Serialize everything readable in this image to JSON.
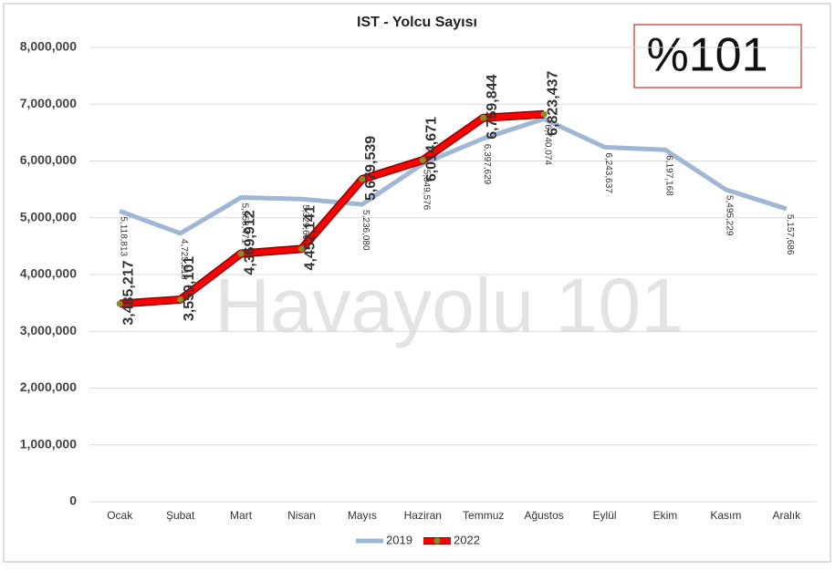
{
  "chart_data": {
    "type": "line",
    "title": "IST - Yolcu Sayısı",
    "annotations": [
      "%101",
      "Havayolu 101"
    ],
    "categories": [
      "Ocak",
      "Şubat",
      "Mart",
      "Nisan",
      "Mayıs",
      "Haziran",
      "Temmuz",
      "Ağustos",
      "Eylül",
      "Ekim",
      "Kasım",
      "Aralık"
    ],
    "series": [
      {
        "name": "2019",
        "color": "#9fb6d4",
        "values": [
          5118813,
          4725218,
          5356471,
          5329652,
          5236080,
          5949576,
          6397629,
          6740074,
          6243637,
          6197168,
          5495229,
          5157686
        ],
        "value_labels": [
          "5,118,813",
          "4,725,218",
          "5,356,471",
          "5,329,652",
          "5,236,080",
          "5,949,576",
          "6,397,629",
          "6,740,074",
          "6,243,637",
          "6,197,168",
          "5,495,229",
          "5,157,686"
        ]
      },
      {
        "name": "2022",
        "color": "#ff0000",
        "values": [
          3485217,
          3559101,
          4369912,
          4452141,
          5679539,
          6014671,
          6759844,
          6823437,
          null,
          null,
          null,
          null
        ],
        "value_labels": [
          "3,485,217",
          "3,559,101",
          "4,369,912",
          "4,452,141",
          "5,679,539",
          "6,014,671",
          "6,759,844",
          "6,823,437",
          null,
          null,
          null,
          null
        ]
      }
    ],
    "ylim": [
      0,
      8000000
    ],
    "yticks": [
      0,
      {
        "value": 1000000,
        "label": "1,000,000"
      },
      {
        "value": 2000000,
        "label": "2,000,000"
      },
      {
        "value": 3000000,
        "label": "3,000,000"
      },
      {
        "value": 4000000,
        "label": "4,000,000"
      },
      {
        "value": 5000000,
        "label": "5,000,000"
      },
      {
        "value": 6000000,
        "label": "6,000,000"
      },
      {
        "value": 7000000,
        "label": "7,000,000"
      },
      {
        "value": 8000000,
        "label": "8,000,000"
      }
    ],
    "grid": true,
    "legend": "bottom"
  }
}
